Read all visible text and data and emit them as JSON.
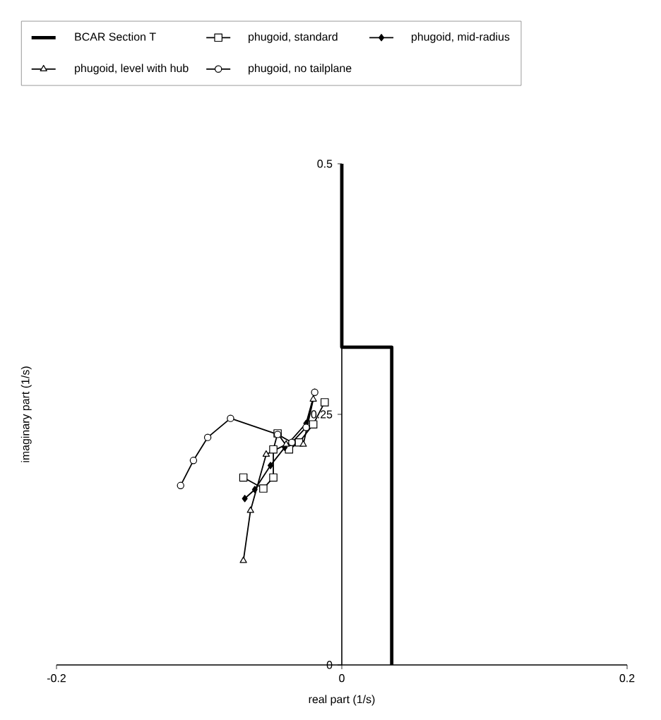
{
  "chart_data": {
    "type": "line",
    "xlabel": "real part (1/s)",
    "ylabel": "imaginary part (1/s)",
    "xlim": [
      -0.2,
      0.2
    ],
    "ylim": [
      0,
      0.5
    ],
    "xticks": [
      -0.2,
      0,
      0.2
    ],
    "yticks": [
      0,
      0.25,
      0.5
    ],
    "grid": false,
    "legend": "top",
    "series": [
      {
        "name": "BCAR Section T",
        "color": "#000000",
        "marker": "none",
        "x": [
          0,
          0,
          0.035,
          0.035
        ],
        "values": [
          0.5,
          0.317,
          0.317,
          0
        ]
      },
      {
        "name": "phugoid, standard",
        "color": "#000000",
        "marker": "square",
        "x": [
          -0.069,
          -0.055,
          -0.048,
          -0.048,
          -0.045,
          -0.037,
          -0.03,
          -0.02,
          -0.012
        ],
        "values": [
          0.187,
          0.176,
          0.187,
          0.215,
          0.231,
          0.215,
          0.222,
          0.24,
          0.262
        ]
      },
      {
        "name": "phugoid, mid-radius",
        "color": "#000000",
        "marker": "diamond",
        "x": [
          -0.068,
          -0.061,
          -0.05,
          -0.04,
          -0.025,
          -0.019
        ],
        "values": [
          0.166,
          0.175,
          0.199,
          0.217,
          0.241,
          0.272
        ]
      },
      {
        "name": "phugoid, level with hub",
        "color": "#000000",
        "marker": "triangle",
        "x": [
          -0.069,
          -0.064,
          -0.053,
          -0.039,
          -0.027,
          -0.02
        ],
        "values": [
          0.104,
          0.154,
          0.21,
          0.22,
          0.22,
          0.265
        ]
      },
      {
        "name": "phugoid, no tailplane",
        "color": "#000000",
        "marker": "circle",
        "x": [
          -0.113,
          -0.104,
          -0.094,
          -0.078,
          -0.045,
          -0.035,
          -0.025,
          -0.019
        ],
        "values": [
          0.179,
          0.204,
          0.227,
          0.246,
          0.23,
          0.222,
          0.237,
          0.272
        ]
      }
    ]
  }
}
